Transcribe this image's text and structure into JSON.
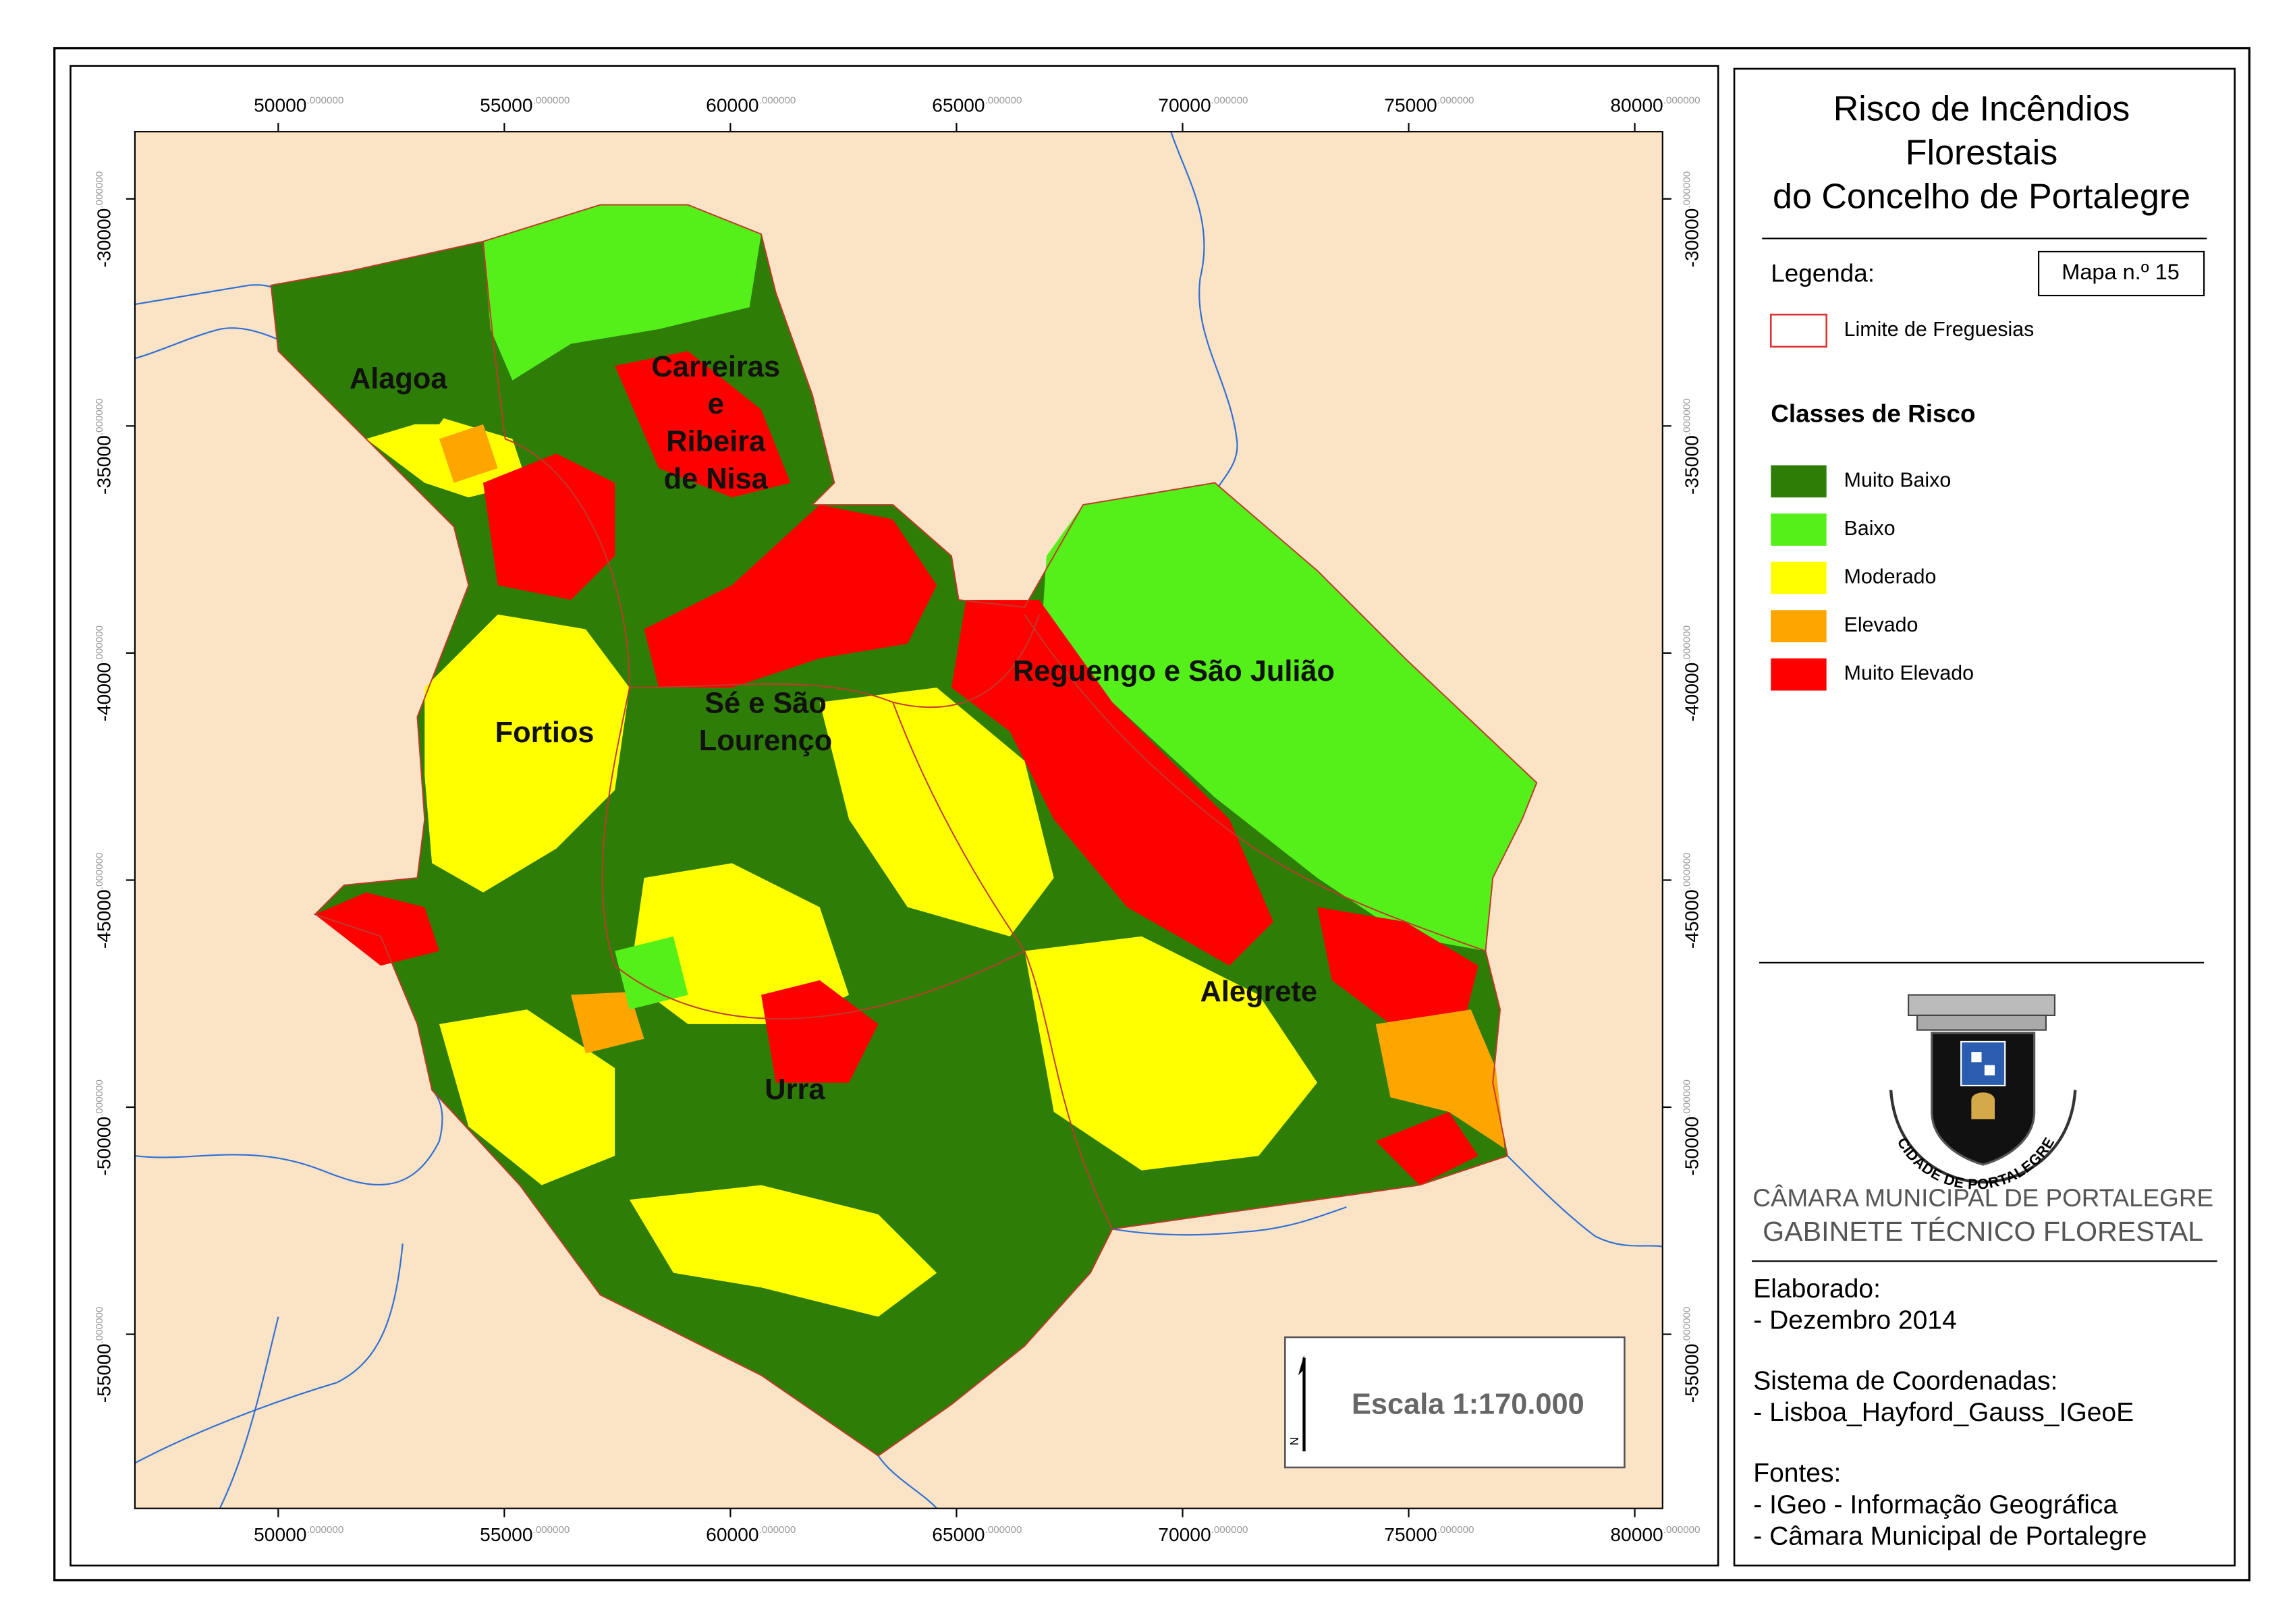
{
  "map": {
    "xlim": [
      46830,
      80615
    ],
    "ylim": [
      -28520,
      -58835
    ],
    "x_ticks": [
      {
        "value": 50000,
        "label": "50000",
        "decimals": ".000000"
      },
      {
        "value": 55000,
        "label": "55000",
        "decimals": ".000000"
      },
      {
        "value": 60000,
        "label": "60000",
        "decimals": ".000000"
      },
      {
        "value": 65000,
        "label": "65000",
        "decimals": ".000000"
      },
      {
        "value": 70000,
        "label": "70000",
        "decimals": ".000000"
      },
      {
        "value": 75000,
        "label": "75000",
        "decimals": ".000000"
      },
      {
        "value": 80000,
        "label": "80000",
        "decimals": ".000000"
      }
    ],
    "y_ticks": [
      {
        "value": -30000,
        "label": "-30000",
        "decimals": ".000000"
      },
      {
        "value": -35000,
        "label": "-35000",
        "decimals": ".000000"
      },
      {
        "value": -40000,
        "label": "-40000",
        "decimals": ".000000"
      },
      {
        "value": -45000,
        "label": "-45000",
        "decimals": ".000000"
      },
      {
        "value": -50000,
        "label": "-50000",
        "decimals": ".000000"
      },
      {
        "value": -55000,
        "label": "-55000",
        "decimals": ".000000"
      }
    ],
    "places": [
      {
        "lines": [
          "Alagoa"
        ]
      },
      {
        "lines": [
          "Carreiras",
          "e",
          "Ribeira",
          "de Nisa"
        ]
      },
      {
        "lines": [
          "Reguengo e São Julião"
        ]
      },
      {
        "lines": [
          "Sé e São",
          "Lourenço"
        ]
      },
      {
        "lines": [
          "Fortios"
        ]
      },
      {
        "lines": [
          "Alegrete"
        ]
      },
      {
        "lines": [
          "Urra"
        ]
      }
    ],
    "north": "N",
    "scale": "Escala 1:170.000"
  },
  "panel": {
    "title": [
      "Risco de Incêndios",
      "Florestais",
      "do Concelho de Portalegre"
    ],
    "legend_heading": "Legenda:",
    "map_number": "Mapa n.º 15",
    "boundary_label": "Limite de Freguesias",
    "classes_heading": "Classes de Risco",
    "classes": [
      {
        "label": "Muito Baixo",
        "color": "#2e7d06"
      },
      {
        "label": "Baixo",
        "color": "#55f01a"
      },
      {
        "label": "Moderado",
        "color": "#ffff00"
      },
      {
        "label": "Elevado",
        "color": "#ffa500"
      },
      {
        "label": "Muito Elevado",
        "color": "#ff0000"
      }
    ],
    "emblem_text": "CIDADE DE PORTALEGRE",
    "org": "CÂMARA MUNICIPAL DE PORTALEGRE",
    "dept": "GABINETE TÉCNICO FLORESTAL",
    "credits": [
      {
        "heading": "Elaborado:",
        "lines": [
          "- Dezembro 2014"
        ]
      },
      {
        "heading": "Sistema de Coordenadas:",
        "lines": [
          "- Lisboa_Hayford_Gauss_IGeoE"
        ]
      },
      {
        "heading": "Fontes:",
        "lines": [
          "- IGeo - Informação Geográfica",
          "- Câmara Municipal de Portalegre"
        ]
      }
    ]
  }
}
